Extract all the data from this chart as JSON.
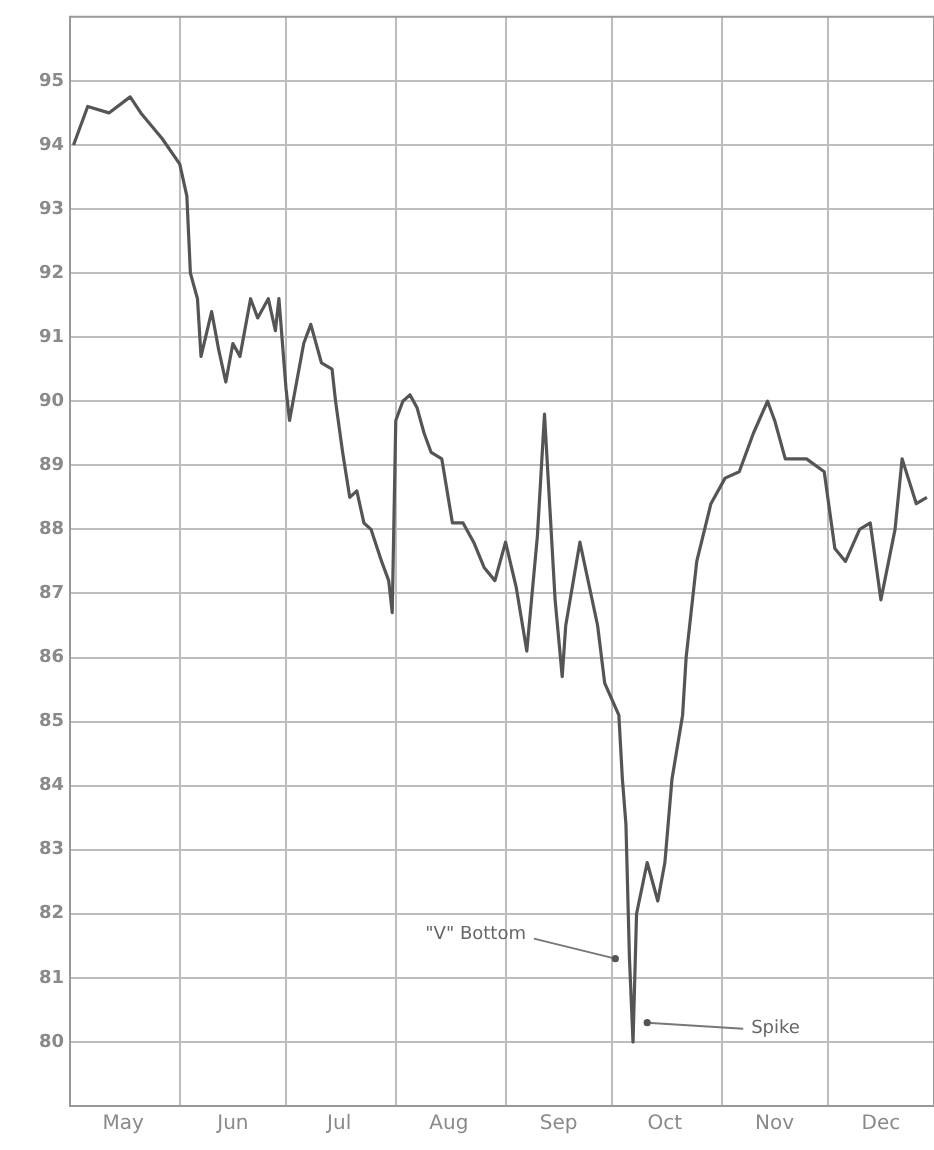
{
  "chart_data": {
    "type": "line",
    "xlim": [
      "--05-01",
      "--12-31"
    ],
    "ylim": [
      79,
      96
    ],
    "yticks": [
      80,
      81,
      82,
      83,
      84,
      85,
      86,
      87,
      88,
      89,
      90,
      91,
      92,
      93,
      94,
      95
    ],
    "xticks": [
      {
        "value": "--05-01",
        "label": null
      },
      {
        "value": "--05-16",
        "label": "May"
      },
      {
        "value": "--06-01",
        "label": null
      },
      {
        "value": "--06-16",
        "label": "Jun"
      },
      {
        "value": "--07-01",
        "label": null
      },
      {
        "value": "--07-16",
        "label": "Jul"
      },
      {
        "value": "--08-01",
        "label": null
      },
      {
        "value": "--08-16",
        "label": "Aug"
      },
      {
        "value": "--09-01",
        "label": null
      },
      {
        "value": "--09-16",
        "label": "Sep"
      },
      {
        "value": "--10-01",
        "label": null
      },
      {
        "value": "--10-16",
        "label": "Oct"
      },
      {
        "value": "--11-01",
        "label": null
      },
      {
        "value": "--11-16",
        "label": "Nov"
      },
      {
        "value": "--12-01",
        "label": null
      },
      {
        "value": "--12-16",
        "label": "Dec"
      }
    ],
    "grid": true,
    "legend": false,
    "marker": "none",
    "line_style": "solid",
    "series": [
      {
        "color": "#555555",
        "x": [
          "--05-02",
          "--05-06",
          "--05-12",
          "--05-18",
          "--05-21",
          "--05-24",
          "--05-27",
          "--06-01",
          "--06-03",
          "--06-04",
          "--06-06",
          "--06-07",
          "--06-10",
          "--06-12",
          "--06-14",
          "--06-16",
          "--06-18",
          "--06-21",
          "--06-23",
          "--06-26",
          "--06-28",
          "--06-29",
          "--07-01",
          "--07-02",
          "--07-04",
          "--07-06",
          "--07-08",
          "--07-11",
          "--07-14",
          "--07-15",
          "--07-17",
          "--07-19",
          "--07-21",
          "--07-23",
          "--07-25",
          "--07-28",
          "--07-30",
          "--07-31",
          "--08-01",
          "--08-03",
          "--08-05",
          "--08-07",
          "--08-09",
          "--08-11",
          "--08-14",
          "--08-17",
          "--08-20",
          "--08-23",
          "--08-26",
          "--08-29",
          "--09-01",
          "--09-04",
          "--09-07",
          "--09-10",
          "--09-12",
          "--09-15",
          "--09-17",
          "--09-18",
          "--09-22",
          "--09-27",
          "--09-29",
          "--10-03",
          "--10-04",
          "--10-05",
          "--10-06",
          "--10-07",
          "--10-08",
          "--10-11",
          "--10-14",
          "--10-16",
          "--10-18",
          "--10-21",
          "--10-22",
          "--10-24",
          "--10-25",
          "--10-29",
          "--11-02",
          "--11-06",
          "--11-10",
          "--11-14",
          "--11-16",
          "--11-19",
          "--11-25",
          "--11-30",
          "--12-03",
          "--12-06",
          "--12-10",
          "--12-13",
          "--12-16",
          "--12-20",
          "--12-22",
          "--12-26",
          "--12-29"
        ],
        "values": [
          94.0,
          94.6,
          94.5,
          94.75,
          94.5,
          94.3,
          94.1,
          93.7,
          93.2,
          92.0,
          91.6,
          90.7,
          91.4,
          90.8,
          90.3,
          90.9,
          90.7,
          91.6,
          91.3,
          91.6,
          91.1,
          91.6,
          90.2,
          89.7,
          90.3,
          90.9,
          91.2,
          90.6,
          90.5,
          90.0,
          89.2,
          88.5,
          88.6,
          88.1,
          88.0,
          87.5,
          87.2,
          86.7,
          89.7,
          90.0,
          90.1,
          89.9,
          89.5,
          89.2,
          89.1,
          88.1,
          88.1,
          87.8,
          87.4,
          87.2,
          87.8,
          87.1,
          86.1,
          87.9,
          89.8,
          86.9,
          85.7,
          86.5,
          87.8,
          86.5,
          85.6,
          85.1,
          84.1,
          83.4,
          81.3,
          80.0,
          82.0,
          82.8,
          82.2,
          82.8,
          84.1,
          85.1,
          86.0,
          87.0,
          87.5,
          88.4,
          88.8,
          88.9,
          89.5,
          90.0,
          89.7,
          89.1,
          89.1,
          88.9,
          87.7,
          87.5,
          88.0,
          88.1,
          86.9,
          88.0,
          89.1,
          88.4,
          88.5
        ]
      }
    ],
    "annotations": [
      {
        "text": "\"V\" Bottom",
        "x": "--10-02",
        "y": 81.3
      },
      {
        "text": "Spike",
        "x": "--10-11",
        "y": 80.3
      }
    ]
  }
}
